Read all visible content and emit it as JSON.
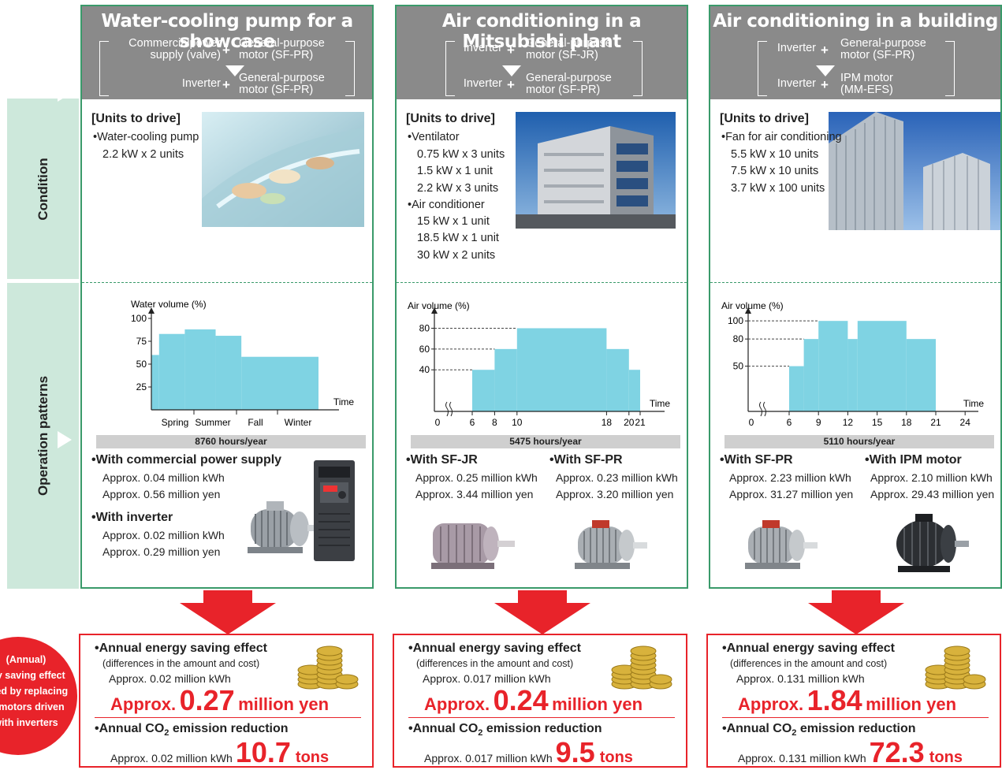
{
  "side_labels": {
    "condition": "Condition",
    "operation": "Operation patterns"
  },
  "columns": [
    {
      "title": "Water-cooling pump for a showcase",
      "config_top_left": [
        "Commercialpower",
        "supply (valve)"
      ],
      "config_top_right": [
        "General-purpose",
        "motor (SF-PR)"
      ],
      "config_bottom_left": "Inverter",
      "config_bottom_right": [
        "General-purpose",
        "motor (SF-PR)"
      ],
      "units_title": "[Units to drive]",
      "units_lines": [
        "•Water-cooling pump",
        "2.2 kW x 2 units"
      ],
      "hours": "8760 hours/year",
      "results": [
        {
          "title": "•With commercial power supply",
          "lines": [
            "Approx. 0.04 million kWh",
            "Approx. 0.56 million yen"
          ]
        },
        {
          "title": "•With inverter",
          "lines": [
            "Approx. 0.02 million kWh",
            "Approx. 0.29 million yen"
          ]
        }
      ],
      "saving": {
        "title": "•Annual energy saving effect",
        "subtitle": "(differences in the amount and cost)",
        "kwh": "Approx. 0.02 million kWh",
        "yen_prefix": "Approx.",
        "yen_value": "0.27",
        "yen_suffix": "million yen",
        "co2_title_a": "•Annual CO",
        "co2_sub": "2",
        "co2_title_b": " emission reduction",
        "co2_kwh": "Approx. 0.02 million kWh",
        "co2_value": "10.7",
        "co2_unit": "tons"
      }
    },
    {
      "title": "Air conditioning in a Mitsubishi plant",
      "config_top_left": "Inverter",
      "config_top_right": [
        "General-purpose",
        "motor (SF-JR)"
      ],
      "config_bottom_left": "Inverter",
      "config_bottom_right": [
        "General-purpose",
        "motor (SF-PR)"
      ],
      "units_title": "[Units to drive]",
      "units_lines": [
        "•Ventilator",
        "0.75 kW x 3 units",
        "1.5 kW x 1 unit",
        "2.2 kW x 3 units",
        "•Air conditioner",
        "15 kW x 1 unit",
        "18.5 kW x 1 unit",
        "30 kW x 2 units"
      ],
      "hours": "5475 hours/year",
      "results": [
        {
          "title": "•With SF-JR",
          "lines": [
            "Approx. 0.25 million kWh",
            "Approx. 3.44 million yen"
          ]
        },
        {
          "title": "•With SF-PR",
          "lines": [
            "Approx. 0.23 million kWh",
            "Approx. 3.20 million yen"
          ]
        }
      ],
      "saving": {
        "title": "•Annual energy saving effect",
        "subtitle": "(differences in the amount and cost)",
        "kwh": "Approx. 0.017 million kWh",
        "yen_prefix": "Approx.",
        "yen_value": "0.24",
        "yen_suffix": "million yen",
        "co2_title_a": "•Annual CO",
        "co2_sub": "2",
        "co2_title_b": " emission reduction",
        "co2_kwh": "Approx. 0.017 million kWh",
        "co2_value": "9.5",
        "co2_unit": "tons"
      }
    },
    {
      "title": "Air conditioning in a building",
      "config_top_left": "Inverter",
      "config_top_right": [
        "General-purpose",
        "motor (SF-PR)"
      ],
      "config_bottom_left": "Inverter",
      "config_bottom_right": [
        "IPM motor",
        "(MM-EFS)"
      ],
      "units_title": "[Units to drive]",
      "units_lines": [
        "•Fan for air conditioning",
        "5.5 kW x 10 units",
        "7.5 kW x 10 units",
        "3.7 kW x 100 units"
      ],
      "hours": "5110 hours/year",
      "results": [
        {
          "title": "•With SF-PR",
          "lines": [
            "Approx. 2.23 million kWh",
            "Approx. 31.27 million yen"
          ]
        },
        {
          "title": "•With IPM motor",
          "lines": [
            "Approx. 2.10 million kWh",
            "Approx. 29.43 million yen"
          ]
        }
      ],
      "saving": {
        "title": "•Annual energy saving effect",
        "subtitle": "(differences in the amount and cost)",
        "kwh": "Approx. 0.131 million kWh",
        "yen_prefix": "Approx.",
        "yen_value": "1.84",
        "yen_suffix": "million yen",
        "co2_title_a": "•Annual CO",
        "co2_sub": "2",
        "co2_title_b": " emission reduction",
        "co2_kwh": "Approx. 0.131 million kWh",
        "co2_value": "72.3",
        "co2_unit": "tons"
      }
    }
  ],
  "badge_lines": [
    "(Annual)",
    "rgy saving effect",
    "uced by replacing",
    "M motors driven",
    "with inverters"
  ],
  "chart_data": [
    {
      "type": "area",
      "ylabel": "Water volume (%)",
      "xlabel": "Time",
      "yticks": [
        25,
        50,
        75,
        100
      ],
      "ylim": [
        0,
        100
      ],
      "categories": [
        "Spring",
        "Summer",
        "Fall",
        "Winter"
      ],
      "steps": [
        {
          "from": 0,
          "to": 0.3,
          "value": 60
        },
        {
          "from": 0.3,
          "to": 1.3,
          "value": 83
        },
        {
          "from": 1.3,
          "to": 2.5,
          "value": 88
        },
        {
          "from": 2.5,
          "to": 3.5,
          "value": 81
        },
        {
          "from": 3.5,
          "to": 6.5,
          "value": 58
        }
      ]
    },
    {
      "type": "area",
      "ylabel": "Air volume (%)",
      "xlabel": "Time",
      "yticks": [
        40,
        60,
        80
      ],
      "xticks": [
        "0",
        "6",
        "8",
        "10",
        "18",
        "20",
        "21"
      ],
      "steps": [
        {
          "from": 6,
          "to": 8,
          "value": 40
        },
        {
          "from": 8,
          "to": 10,
          "value": 60
        },
        {
          "from": 10,
          "to": 18,
          "value": 80
        },
        {
          "from": 18,
          "to": 20,
          "value": 60
        },
        {
          "from": 20,
          "to": 21,
          "value": 40
        }
      ]
    },
    {
      "type": "area",
      "ylabel": "Air volume (%)",
      "xlabel": "Time",
      "yticks": [
        50,
        80,
        100
      ],
      "xticks": [
        "0",
        "6",
        "9",
        "12",
        "15",
        "18",
        "21",
        "24"
      ],
      "steps": [
        {
          "from": 6,
          "to": 7.5,
          "value": 50
        },
        {
          "from": 7.5,
          "to": 9,
          "value": 80
        },
        {
          "from": 9,
          "to": 12,
          "value": 100
        },
        {
          "from": 12,
          "to": 13,
          "value": 80
        },
        {
          "from": 13,
          "to": 18,
          "value": 100
        },
        {
          "from": 18,
          "to": 21,
          "value": 80
        }
      ]
    }
  ]
}
